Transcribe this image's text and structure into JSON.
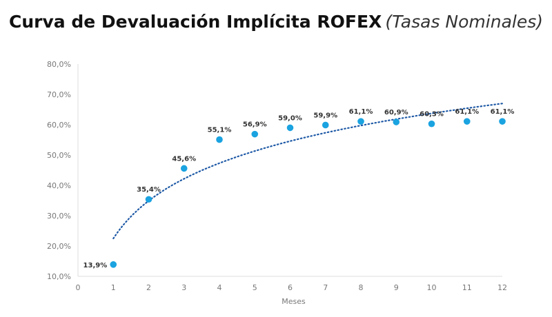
{
  "chart_data": {
    "type": "scatter",
    "title": "Curva de Devaluación Implícita ROFEX",
    "subtitle": "(Tasas Nominales)",
    "xlabel": "Meses",
    "ylabel": "",
    "xlim": [
      0,
      12
    ],
    "ylim": [
      10,
      80
    ],
    "x_ticks": [
      0,
      1,
      2,
      3,
      4,
      5,
      6,
      7,
      8,
      9,
      10,
      11,
      12
    ],
    "y_ticks": [
      "10,0%",
      "20,0%",
      "30,0%",
      "40,0%",
      "50,0%",
      "60,0%",
      "70,0%",
      "80,0%"
    ],
    "y_tick_values": [
      10,
      20,
      30,
      40,
      50,
      60,
      70,
      80
    ],
    "grid": false,
    "series": [
      {
        "x": [
          1,
          2,
          3,
          4,
          5,
          6,
          7,
          8,
          9,
          10,
          11,
          12
        ],
        "values": [
          13.9,
          35.4,
          45.6,
          55.1,
          56.9,
          59.0,
          59.9,
          61.1,
          60.9,
          60.3,
          61.1,
          61.1
        ],
        "labels": [
          "13,9%",
          "35,4%",
          "45,6%",
          "55,1%",
          "56,9%",
          "59,0%",
          "59,9%",
          "61,1%",
          "60,9%",
          "60,3%",
          "61,1%",
          "61,1%"
        ],
        "color": "#1aa3e0"
      }
    ],
    "trendline": {
      "type": "logarithmic",
      "style": "dotted",
      "color": "#1f5aa6",
      "x": [
        1,
        12
      ],
      "y": [
        22.5,
        67.0
      ]
    }
  }
}
